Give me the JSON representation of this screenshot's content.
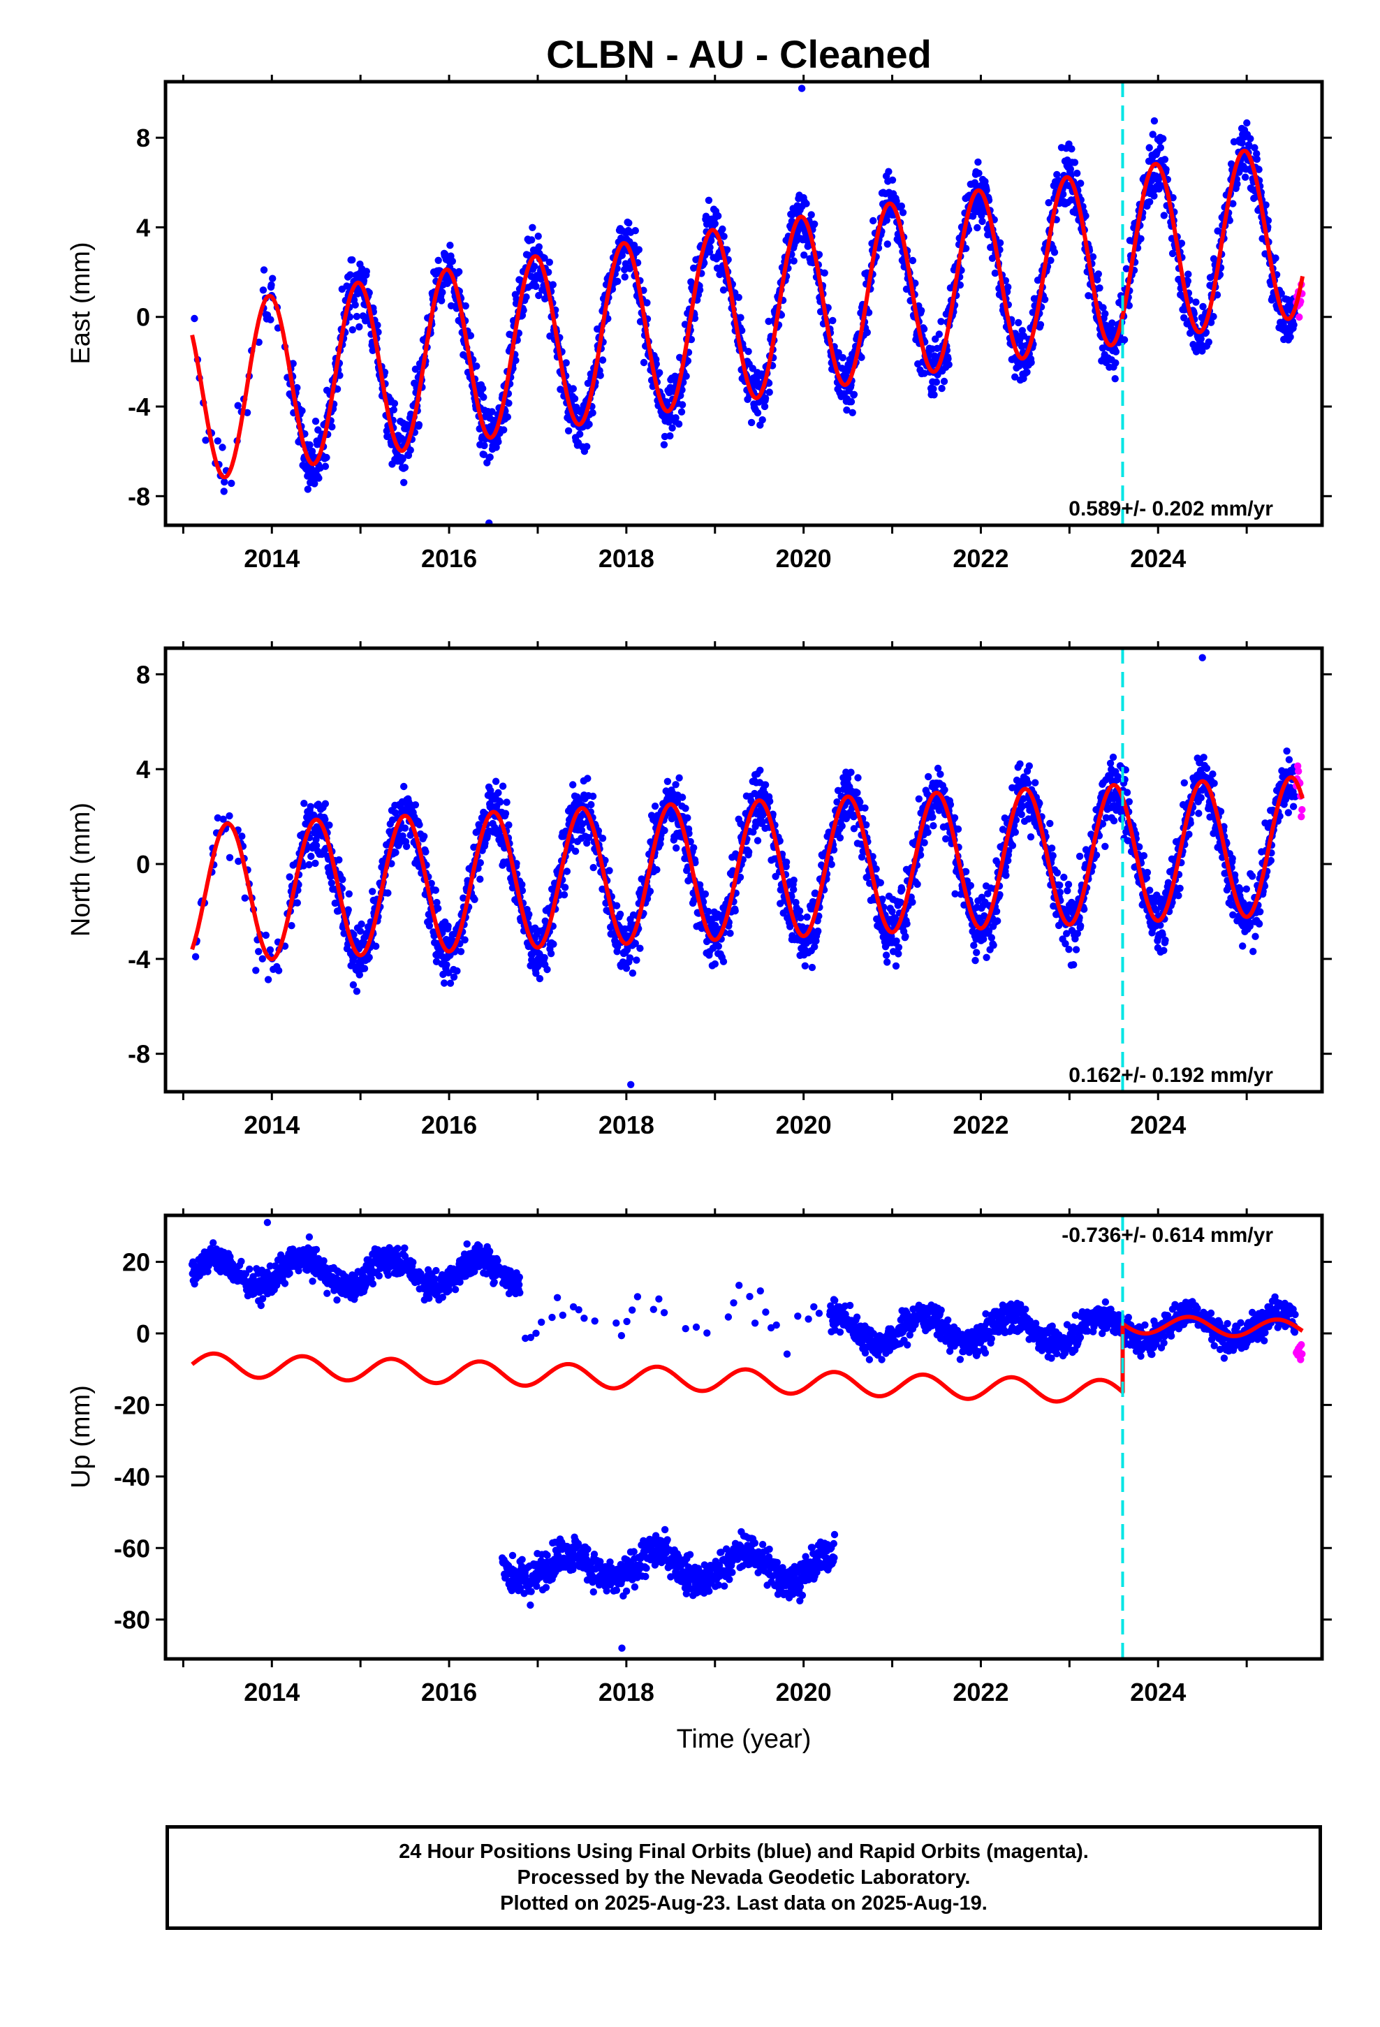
{
  "title": "CLBN  - AU - Cleaned",
  "xlabel": "Time (year)",
  "colors": {
    "final": "#0000ff",
    "rapid": "#ff00ff",
    "model": "#ff0000",
    "event": "#00e5e5"
  },
  "footer": {
    "line1": "24 Hour Positions Using Final Orbits (blue) and Rapid Orbits (magenta).",
    "line2": "Processed by the Nevada Geodetic Laboratory.",
    "line3": "Plotted on 2025-Aug-23. Last data on 2025-Aug-19."
  },
  "chart_data": [
    {
      "type": "scatter",
      "ylabel": "East (mm)",
      "rate_label": "0.589+/- 0.202 mm/yr",
      "xlim": [
        2012.8,
        2025.85
      ],
      "ylim": [
        -9.3,
        10.5
      ],
      "xticks": [
        2014,
        2016,
        2018,
        2020,
        2022,
        2024
      ],
      "yticks": [
        -8,
        -4,
        0,
        4,
        8
      ],
      "event_line_x": 2023.6,
      "data_range": [
        2013.1,
        2025.55
      ],
      "sparse_before": 2014.2,
      "model": {
        "offset_at_2019": 0.0,
        "trend_mm_per_yr": 0.589,
        "annual_amplitude": 3.9,
        "annual_peak_month": 0.97,
        "offset_after_event": 0.0
      },
      "extremes": [
        {
          "x": 2019.98,
          "y": 10.2
        },
        {
          "x": 2016.45,
          "y": -9.2
        }
      ]
    },
    {
      "type": "scatter",
      "ylabel": "North (mm)",
      "rate_label": "0.162+/- 0.192 mm/yr",
      "xlim": [
        2012.8,
        2025.85
      ],
      "ylim": [
        -9.6,
        9.1
      ],
      "xticks": [
        2014,
        2016,
        2018,
        2020,
        2022,
        2024
      ],
      "yticks": [
        -8,
        -4,
        0,
        4,
        8
      ],
      "event_line_x": 2023.6,
      "data_range": [
        2013.1,
        2025.55
      ],
      "sparse_before": 2014.2,
      "model": {
        "offset_at_2019": -0.3,
        "trend_mm_per_yr": 0.162,
        "annual_amplitude": 2.9,
        "annual_peak_month": 0.5,
        "offset_after_event": 0.0
      },
      "extremes": [
        {
          "x": 2024.5,
          "y": 8.7
        },
        {
          "x": 2018.05,
          "y": -9.3
        }
      ]
    },
    {
      "type": "scatter",
      "ylabel": "Up (mm)",
      "rate_label": "-0.736+/- 0.614 mm/yr",
      "xlim": [
        2012.8,
        2025.85
      ],
      "ylim": [
        -91,
        33
      ],
      "xticks": [
        2014,
        2016,
        2018,
        2020,
        2022,
        2024
      ],
      "yticks": [
        -80,
        -60,
        -40,
        -20,
        0,
        20
      ],
      "event_line_x": 2023.6,
      "data_range": [
        2013.1,
        2025.55
      ],
      "model_before": {
        "mean": -13,
        "trend_mm_per_yr": -0.736,
        "annual_amplitude": 3.2
      },
      "model_after": {
        "mean": 2,
        "trend_mm_per_yr": -0.736,
        "annual_amplitude": 2.5
      },
      "clusters": [
        {
          "x": [
            2013.1,
            2016.8
          ],
          "mean": 17,
          "spread": 4
        },
        {
          "x": [
            2016.8,
            2020.3
          ],
          "mean": 5,
          "spread": 6,
          "sparse": true
        },
        {
          "x": [
            2016.6,
            2020.35
          ],
          "mean": -65,
          "spread": 5
        },
        {
          "x": [
            2020.3,
            2023.6
          ],
          "mean": 1,
          "spread": 4
        },
        {
          "x": [
            2023.6,
            2025.55
          ],
          "mean": 2,
          "spread": 4
        }
      ],
      "extremes": [
        {
          "x": 2013.95,
          "y": 31
        },
        {
          "x": 2017.95,
          "y": -88
        }
      ]
    }
  ]
}
